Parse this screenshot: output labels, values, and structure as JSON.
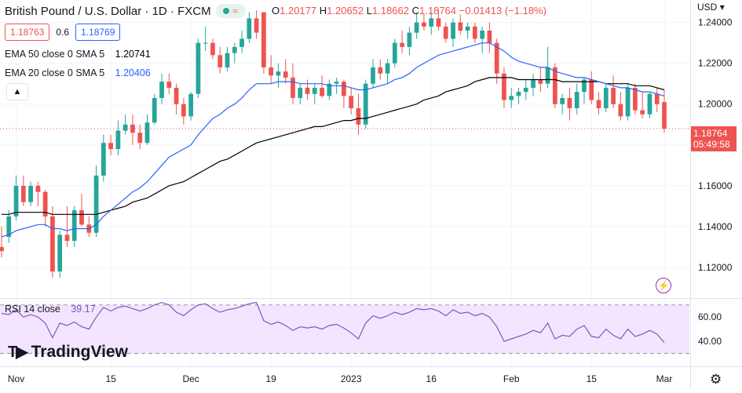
{
  "header": {
    "symbol": "British Pound / U.S. Dollar · 1D · FXCM",
    "ohlc": {
      "o_label": "O",
      "o": "1.20177",
      "h_label": "H",
      "h": "1.20652",
      "l_label": "L",
      "l": "1.18662",
      "c_label": "C",
      "c": "1.18764",
      "change": "−0.01413 (−1.18%)"
    }
  },
  "quote": {
    "sell": "1.18763",
    "spread": "0.6",
    "buy": "1.18769"
  },
  "indicators": {
    "ema50": {
      "label": "EMA 50 close 0 SMA 5",
      "value": "1.20741"
    },
    "ema20": {
      "label": "EMA 20 close 0 SMA 5",
      "value": "1.20406"
    },
    "collapse_icon": "chevron-up-icon"
  },
  "rsi": {
    "label": "RSI 14 close",
    "value": "39.17"
  },
  "axis": {
    "currency": "USD",
    "last_price": "1.18764",
    "countdown": "05:49:58"
  },
  "brand": {
    "name": "TradingView"
  },
  "colors": {
    "up": "#26a69a",
    "down": "#ef5350",
    "ema20": "#2962ff",
    "ema50": "#000000",
    "rsi": "#7e57c2",
    "rsi_band": "#f3e5ff"
  },
  "chart_data": {
    "type": "candlestick",
    "y_price_ticks": [
      "1.24000",
      "1.22000",
      "1.20000",
      "1.18000",
      "1.16000",
      "1.14000",
      "1.12000"
    ],
    "y_price_values": [
      1.24,
      1.22,
      1.2,
      1.18,
      1.16,
      1.14,
      1.12
    ],
    "ylim_price": [
      1.105,
      1.251
    ],
    "rsi_ticks": [
      "60.00",
      "40.00"
    ],
    "rsi_values": [
      60,
      40
    ],
    "rsi_band": [
      30,
      70
    ],
    "x_ticks": [
      "Nov",
      "15",
      "Dec",
      "19",
      "2023",
      "16",
      "Feb",
      "15",
      "Mar"
    ],
    "x_tick_index": [
      2,
      15,
      26,
      37,
      48,
      59,
      70,
      81,
      91
    ],
    "candles": [
      [
        1.13,
        1.14,
        1.125,
        1.128
      ],
      [
        1.135,
        1.148,
        1.132,
        1.145
      ],
      [
        1.145,
        1.165,
        1.143,
        1.16
      ],
      [
        1.16,
        1.165,
        1.15,
        1.152
      ],
      [
        1.152,
        1.162,
        1.15,
        1.16
      ],
      [
        1.16,
        1.162,
        1.15,
        1.157
      ],
      [
        1.157,
        1.158,
        1.14,
        1.145
      ],
      [
        1.145,
        1.15,
        1.115,
        1.118
      ],
      [
        1.118,
        1.138,
        1.115,
        1.136
      ],
      [
        1.136,
        1.15,
        1.13,
        1.133
      ],
      [
        1.133,
        1.15,
        1.13,
        1.148
      ],
      [
        1.148,
        1.156,
        1.14,
        1.141
      ],
      [
        1.141,
        1.145,
        1.135,
        1.137
      ],
      [
        1.137,
        1.17,
        1.135,
        1.165
      ],
      [
        1.165,
        1.185,
        1.162,
        1.181
      ],
      [
        1.181,
        1.185,
        1.175,
        1.178
      ],
      [
        1.178,
        1.192,
        1.175,
        1.187
      ],
      [
        1.187,
        1.195,
        1.185,
        1.19
      ],
      [
        1.19,
        1.195,
        1.18,
        1.186
      ],
      [
        1.186,
        1.19,
        1.178,
        1.181
      ],
      [
        1.181,
        1.195,
        1.18,
        1.191
      ],
      [
        1.191,
        1.205,
        1.19,
        1.203
      ],
      [
        1.203,
        1.215,
        1.2,
        1.211
      ],
      [
        1.211,
        1.215,
        1.205,
        1.208
      ],
      [
        1.208,
        1.21,
        1.195,
        1.2
      ],
      [
        1.2,
        1.203,
        1.19,
        1.194
      ],
      [
        1.194,
        1.206,
        1.192,
        1.205
      ],
      [
        1.205,
        1.232,
        1.203,
        1.23
      ],
      [
        1.23,
        1.238,
        1.226,
        1.23
      ],
      [
        1.23,
        1.232,
        1.222,
        1.224
      ],
      [
        1.224,
        1.228,
        1.215,
        1.218
      ],
      [
        1.218,
        1.228,
        1.216,
        1.225
      ],
      [
        1.225,
        1.23,
        1.22,
        1.228
      ],
      [
        1.228,
        1.236,
        1.225,
        1.232
      ],
      [
        1.232,
        1.245,
        1.23,
        1.242
      ],
      [
        1.242,
        1.246,
        1.232,
        1.235
      ],
      [
        1.245,
        1.245,
        1.215,
        1.218
      ],
      [
        1.218,
        1.224,
        1.21,
        1.214
      ],
      [
        1.214,
        1.22,
        1.208,
        1.216
      ],
      [
        1.216,
        1.222,
        1.21,
        1.213
      ],
      [
        1.213,
        1.22,
        1.2,
        1.203
      ],
      [
        1.203,
        1.21,
        1.2,
        1.208
      ],
      [
        1.208,
        1.212,
        1.202,
        1.205
      ],
      [
        1.205,
        1.21,
        1.2,
        1.208
      ],
      [
        1.208,
        1.214,
        1.203,
        1.204
      ],
      [
        1.204,
        1.212,
        1.202,
        1.21
      ],
      [
        1.21,
        1.213,
        1.205,
        1.211
      ],
      [
        1.211,
        1.212,
        1.198,
        1.204
      ],
      [
        1.204,
        1.208,
        1.195,
        1.198
      ],
      [
        1.198,
        1.205,
        1.185,
        1.19
      ],
      [
        1.19,
        1.212,
        1.188,
        1.21
      ],
      [
        1.21,
        1.222,
        1.208,
        1.218
      ],
      [
        1.218,
        1.222,
        1.212,
        1.215
      ],
      [
        1.215,
        1.222,
        1.21,
        1.22
      ],
      [
        1.22,
        1.232,
        1.218,
        1.23
      ],
      [
        1.23,
        1.236,
        1.225,
        1.228
      ],
      [
        1.228,
        1.238,
        1.224,
        1.235
      ],
      [
        1.235,
        1.245,
        1.232,
        1.24
      ],
      [
        1.24,
        1.244,
        1.236,
        1.238
      ],
      [
        1.238,
        1.245,
        1.234,
        1.242
      ],
      [
        1.242,
        1.246,
        1.236,
        1.238
      ],
      [
        1.238,
        1.24,
        1.23,
        1.232
      ],
      [
        1.232,
        1.242,
        1.228,
        1.24
      ],
      [
        1.24,
        1.244,
        1.234,
        1.236
      ],
      [
        1.236,
        1.24,
        1.232,
        1.238
      ],
      [
        1.238,
        1.24,
        1.23,
        1.232
      ],
      [
        1.232,
        1.238,
        1.225,
        1.236
      ],
      [
        1.236,
        1.24,
        1.225,
        1.23
      ],
      [
        1.23,
        1.232,
        1.21,
        1.215
      ],
      [
        1.215,
        1.218,
        1.198,
        1.202
      ],
      [
        1.202,
        1.208,
        1.198,
        1.204
      ],
      [
        1.204,
        1.208,
        1.2,
        1.206
      ],
      [
        1.206,
        1.212,
        1.202,
        1.208
      ],
      [
        1.208,
        1.215,
        1.204,
        1.212
      ],
      [
        1.212,
        1.218,
        1.206,
        1.21
      ],
      [
        1.21,
        1.228,
        1.208,
        1.218
      ],
      [
        1.218,
        1.22,
        1.198,
        1.2
      ],
      [
        1.2,
        1.205,
        1.195,
        1.203
      ],
      [
        1.203,
        1.208,
        1.192,
        1.198
      ],
      [
        1.198,
        1.21,
        1.195,
        1.206
      ],
      [
        1.206,
        1.213,
        1.2,
        1.212
      ],
      [
        1.212,
        1.216,
        1.2,
        1.202
      ],
      [
        1.202,
        1.206,
        1.195,
        1.198
      ],
      [
        1.198,
        1.21,
        1.196,
        1.208
      ],
      [
        1.208,
        1.214,
        1.198,
        1.2
      ],
      [
        1.2,
        1.206,
        1.192,
        1.194
      ],
      [
        1.194,
        1.21,
        1.192,
        1.208
      ],
      [
        1.208,
        1.21,
        1.195,
        1.197
      ],
      [
        1.197,
        1.206,
        1.193,
        1.195
      ],
      [
        1.195,
        1.206,
        1.193,
        1.205
      ],
      [
        1.205,
        1.208,
        1.196,
        1.2
      ],
      [
        1.201,
        1.207,
        1.186,
        1.188
      ]
    ],
    "ema20": [
      1.135,
      1.136,
      1.138,
      1.139,
      1.14,
      1.141,
      1.141,
      1.139,
      1.139,
      1.138,
      1.139,
      1.139,
      1.139,
      1.141,
      1.145,
      1.148,
      1.151,
      1.154,
      1.157,
      1.159,
      1.162,
      1.166,
      1.17,
      1.174,
      1.176,
      1.178,
      1.18,
      1.185,
      1.189,
      1.193,
      1.195,
      1.198,
      1.2,
      1.203,
      1.207,
      1.21,
      1.21,
      1.21,
      1.211,
      1.211,
      1.211,
      1.21,
      1.21,
      1.21,
      1.21,
      1.209,
      1.209,
      1.209,
      1.208,
      1.207,
      1.207,
      1.208,
      1.209,
      1.21,
      1.212,
      1.213,
      1.215,
      1.218,
      1.22,
      1.222,
      1.224,
      1.225,
      1.226,
      1.227,
      1.228,
      1.229,
      1.23,
      1.23,
      1.228,
      1.226,
      1.223,
      1.221,
      1.22,
      1.219,
      1.218,
      1.218,
      1.216,
      1.215,
      1.214,
      1.213,
      1.213,
      1.212,
      1.211,
      1.21,
      1.209,
      1.208,
      1.208,
      1.207,
      1.206,
      1.206,
      1.205,
      1.204
    ],
    "ema50": [
      1.146,
      1.146,
      1.147,
      1.147,
      1.147,
      1.147,
      1.147,
      1.146,
      1.146,
      1.146,
      1.146,
      1.146,
      1.146,
      1.146,
      1.147,
      1.148,
      1.149,
      1.15,
      1.152,
      1.153,
      1.154,
      1.156,
      1.158,
      1.16,
      1.161,
      1.162,
      1.164,
      1.166,
      1.168,
      1.17,
      1.172,
      1.173,
      1.175,
      1.177,
      1.179,
      1.181,
      1.182,
      1.183,
      1.184,
      1.185,
      1.186,
      1.187,
      1.188,
      1.189,
      1.189,
      1.19,
      1.191,
      1.192,
      1.192,
      1.193,
      1.193,
      1.194,
      1.195,
      1.196,
      1.197,
      1.198,
      1.199,
      1.2,
      1.202,
      1.203,
      1.204,
      1.206,
      1.207,
      1.208,
      1.209,
      1.211,
      1.212,
      1.213,
      1.213,
      1.213,
      1.213,
      1.212,
      1.212,
      1.212,
      1.212,
      1.212,
      1.212,
      1.211,
      1.211,
      1.211,
      1.211,
      1.211,
      1.211,
      1.21,
      1.21,
      1.21,
      1.21,
      1.209,
      1.209,
      1.209,
      1.208,
      1.207
    ],
    "rsi": [
      63,
      62,
      66,
      60,
      62,
      60,
      55,
      43,
      55,
      53,
      56,
      52,
      50,
      60,
      68,
      65,
      68,
      69,
      67,
      65,
      67,
      70,
      72,
      70,
      64,
      61,
      66,
      70,
      71,
      67,
      64,
      66,
      67,
      69,
      71,
      72,
      57,
      54,
      56,
      53,
      49,
      52,
      51,
      52,
      50,
      53,
      54,
      51,
      47,
      42,
      55,
      61,
      59,
      61,
      64,
      62,
      64,
      67,
      66,
      67,
      65,
      61,
      66,
      63,
      64,
      61,
      63,
      60,
      52,
      40,
      42,
      44,
      46,
      49,
      47,
      55,
      42,
      45,
      44,
      50,
      53,
      44,
      43,
      50,
      45,
      42,
      50,
      44,
      46,
      49,
      46,
      39
    ]
  }
}
